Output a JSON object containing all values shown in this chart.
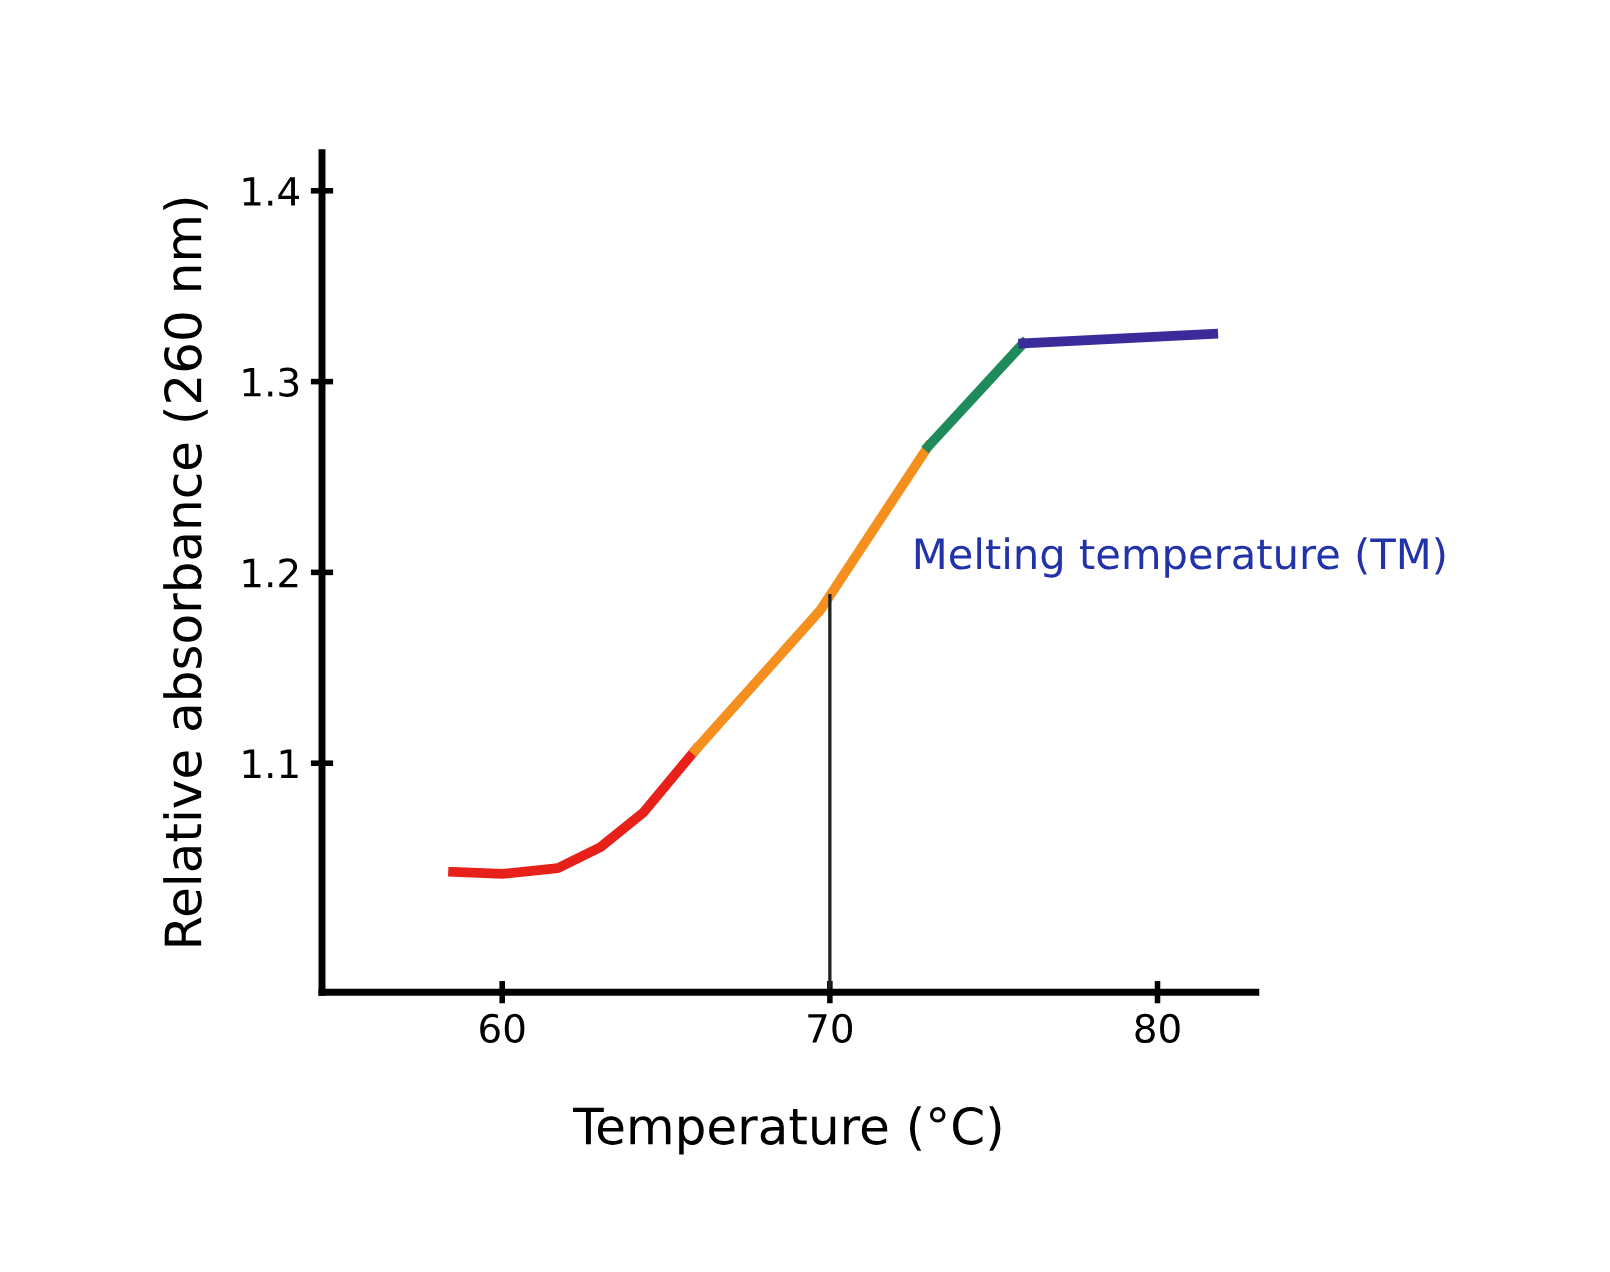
{
  "chart_data": {
    "type": "line",
    "xlabel": "Temperature (°C)",
    "ylabel": "Relative absorbance (260 nm)",
    "xlim": [
      54.5,
      83
    ],
    "ylim": [
      0.98,
      1.42
    ],
    "xticks": [
      60,
      70,
      80
    ],
    "yticks": [
      1.1,
      1.2,
      1.3,
      1.4
    ],
    "grid": false,
    "marker": "none",
    "line_style": "solid",
    "series": [
      {
        "color": "#e8201a",
        "x": [
          58.5,
          60,
          61.7,
          63,
          64.3,
          65.9
        ],
        "values": [
          1.043,
          1.042,
          1.045,
          1.056,
          1.074,
          1.107
        ]
      },
      {
        "color": "#f5901e",
        "x": [
          65.9,
          69.7,
          73
        ],
        "values": [
          1.107,
          1.18,
          1.266
        ]
      },
      {
        "color": "#1f8a5a",
        "x": [
          73,
          75.9
        ],
        "values": [
          1.266,
          1.32
        ]
      },
      {
        "color": "#3a2a9a",
        "x": [
          75.9,
          81.7
        ],
        "values": [
          1.32,
          1.325
        ]
      }
    ],
    "ref_lines": [
      {
        "axis": "x",
        "value": 70,
        "label": "Melting temperature (TM)",
        "color": "#222222",
        "line_style": "solid"
      }
    ]
  }
}
